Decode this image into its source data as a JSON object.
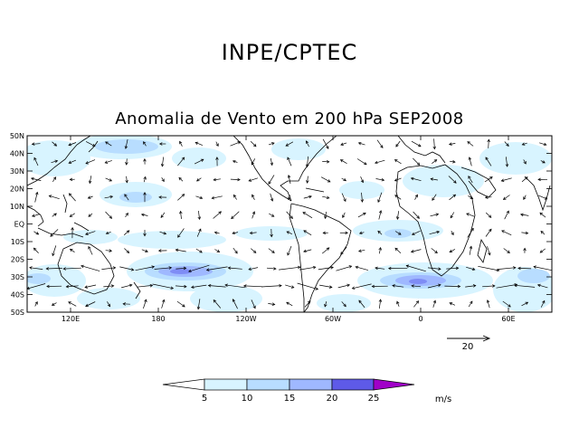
{
  "header": {
    "title": "INPE/CPTEC",
    "subtitle": "Anomalia de Vento em 200 hPa SEP2008"
  },
  "map": {
    "lat_labels": [
      "50N",
      "40N",
      "30N",
      "20N",
      "10N",
      "EQ",
      "10S",
      "20S",
      "30S",
      "40S",
      "50S"
    ],
    "lon_labels": [
      "120E",
      "180",
      "120W",
      "60W",
      "0",
      "60E"
    ],
    "projection": "cylindrical equidistant",
    "lon_range": [
      "90E",
      "90E"
    ],
    "lat_range": [
      "50S",
      "50N"
    ]
  },
  "reference_vector": {
    "label": "20"
  },
  "colorbar": {
    "ticks": [
      "5",
      "10",
      "15",
      "20",
      "25"
    ],
    "unit": "m/s",
    "colors": [
      "#ffffff",
      "#d8f4ff",
      "#b8ddff",
      "#9fb8ff",
      "#7f8cf5",
      "#5e5ae8",
      "#a000c8"
    ]
  },
  "colors": {
    "shade_light": "#d8f4ff",
    "shade_mid": "#b8ddff",
    "shade_strong": "#9fb8ff",
    "shade_max": "#7f8cf5"
  }
}
